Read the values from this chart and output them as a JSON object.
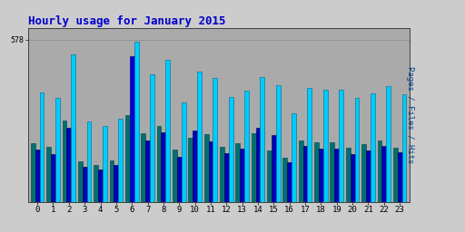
{
  "title": "Hourly usage for January 2015",
  "title_color": "#0000cc",
  "title_fontsize": 9,
  "background_color": "#cccccc",
  "plot_bg_color": "#aaaaaa",
  "hours": [
    0,
    1,
    2,
    3,
    4,
    5,
    6,
    7,
    8,
    9,
    10,
    11,
    12,
    13,
    14,
    15,
    16,
    17,
    18,
    19,
    20,
    21,
    22,
    23
  ],
  "pages": [
    210,
    195,
    290,
    145,
    133,
    148,
    310,
    245,
    270,
    185,
    228,
    240,
    195,
    210,
    245,
    182,
    158,
    220,
    213,
    213,
    193,
    205,
    220,
    193
  ],
  "files": [
    185,
    170,
    265,
    125,
    115,
    130,
    520,
    218,
    248,
    160,
    255,
    215,
    175,
    190,
    265,
    238,
    140,
    198,
    190,
    190,
    170,
    183,
    200,
    178
  ],
  "hits": [
    390,
    370,
    525,
    285,
    270,
    295,
    570,
    455,
    505,
    355,
    465,
    440,
    375,
    395,
    445,
    415,
    315,
    405,
    398,
    398,
    372,
    388,
    412,
    382
  ],
  "pages_color": "#007070",
  "files_color": "#0000bb",
  "files_color_h6": "#0000dd",
  "hits_color": "#00ccff",
  "bar_edge_pages": "#004444",
  "bar_edge_files": "#000044",
  "bar_edge_hits": "#006688",
  "bar_width": 0.28,
  "ylim_min": 0,
  "ylim_max": 620,
  "ytick_val": 578,
  "ytick_label": "578",
  "ylabel_right": "Pages / Files / Hits",
  "pages_label_color": "#007700",
  "files_label_color": "#0000cc",
  "hits_label_color": "#00aacc"
}
